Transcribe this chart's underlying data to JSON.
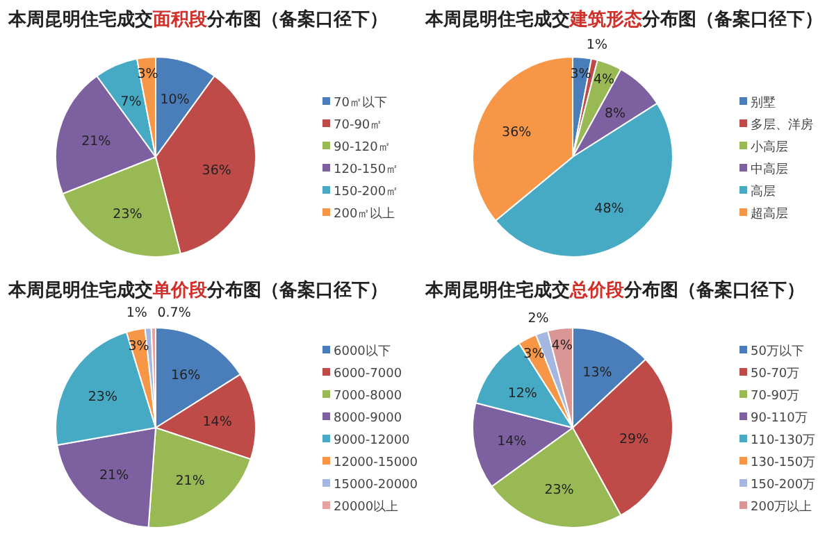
{
  "chart_data": [
    {
      "type": "pie",
      "title": "本周昆明住宅成交**面积段**分布图（备案口径下）",
      "categories": [
        "70㎡以下",
        "70-90㎡",
        "90-120㎡",
        "120-150㎡",
        "150-200㎡",
        "200㎡以上"
      ],
      "values": [
        10,
        36,
        23,
        21,
        7,
        3
      ],
      "value_labels": [
        "10%",
        "36%",
        "23%",
        "21%",
        "7%",
        "3%"
      ],
      "colors": [
        "#4a7ebb",
        "#be4b48",
        "#98b954",
        "#7d60a0",
        "#46aac5",
        "#f79646"
      ],
      "legend": "right"
    },
    {
      "type": "pie",
      "title": "本周昆明住宅成交**建筑形态**分布图（备案口径下）",
      "categories": [
        "别墅",
        "多层、洋房",
        "小高层",
        "中高层",
        "高层",
        "超高层"
      ],
      "values": [
        3,
        1,
        4,
        8,
        48,
        36
      ],
      "value_labels": [
        "3%",
        "1%",
        "4%",
        "8%",
        "48%",
        "36%"
      ],
      "colors": [
        "#4a7ebb",
        "#be4b48",
        "#98b954",
        "#7d60a0",
        "#46aac5",
        "#f79646"
      ],
      "legend": "right"
    },
    {
      "type": "pie",
      "title": "本周昆明住宅成交**单价段**分布图（备案口径下）",
      "categories": [
        "6000以下",
        "6000-7000",
        "7000-8000",
        "8000-9000",
        "9000-12000",
        "12000-15000",
        "15000-20000",
        "20000以上"
      ],
      "values": [
        16,
        14,
        21,
        21,
        23,
        3,
        1,
        0.7
      ],
      "value_labels": [
        "16%",
        "14%",
        "21%",
        "21%",
        "23%",
        "3%",
        "1%",
        "0.7%"
      ],
      "colors": [
        "#4a7ebb",
        "#be4b48",
        "#98b954",
        "#7d60a0",
        "#46aac5",
        "#f79646",
        "#a5b6e0",
        "#e6a2a0"
      ],
      "legend": "right"
    },
    {
      "type": "pie",
      "title": "本周昆明住宅成交**总价段**分布图（备案口径下）",
      "categories": [
        "50万以下",
        "50-70万",
        "70-90万",
        "90-110万",
        "110-130万",
        "130-150万",
        "150-200万",
        "200万以上"
      ],
      "values": [
        13,
        29,
        23,
        14,
        12,
        3,
        2,
        4
      ],
      "value_labels": [
        "13%",
        "29%",
        "23%",
        "14%",
        "12%",
        "3%",
        "2%",
        "4%"
      ],
      "colors": [
        "#4a7ebb",
        "#be4b48",
        "#98b954",
        "#7d60a0",
        "#46aac5",
        "#f79646",
        "#a5b6e0",
        "#d99694"
      ],
      "legend": "right"
    }
  ]
}
